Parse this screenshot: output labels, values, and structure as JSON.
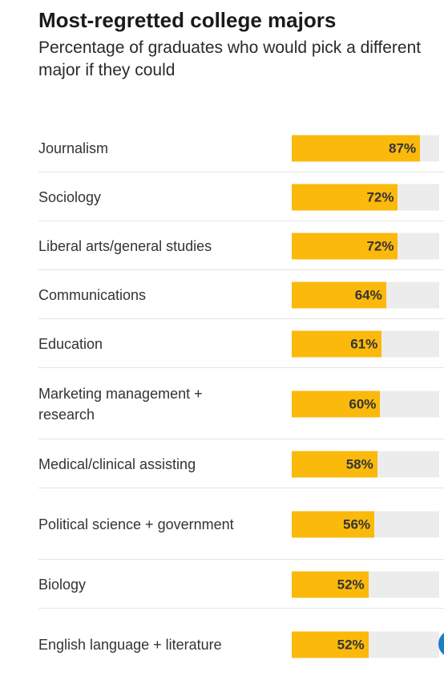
{
  "header": {
    "title": "Most-regretted college majors",
    "subtitle": "Percentage of graduates who would pick a different major if they could"
  },
  "colors": {
    "bar": "#fbb90c",
    "track": "#ececec",
    "text": "#333333",
    "accent": "#1a7fc3"
  },
  "chart_data": {
    "type": "bar",
    "orientation": "horizontal",
    "title": "Most-regretted college majors",
    "subtitle": "Percentage of graduates who would pick a different major if they could",
    "categories": [
      "Journalism",
      "Sociology",
      "Liberal arts/general studies",
      "Communications",
      "Education",
      "Marketing management + research",
      "Medical/clinical assisting",
      "Political science + government",
      "Biology",
      "English language + literature"
    ],
    "values": [
      87,
      72,
      72,
      64,
      61,
      60,
      58,
      56,
      52,
      52
    ],
    "value_labels": [
      "87%",
      "72%",
      "72%",
      "64%",
      "61%",
      "60%",
      "58%",
      "56%",
      "52%",
      "52%"
    ],
    "xlim": [
      0,
      100
    ],
    "grid": false,
    "legend": "none"
  }
}
